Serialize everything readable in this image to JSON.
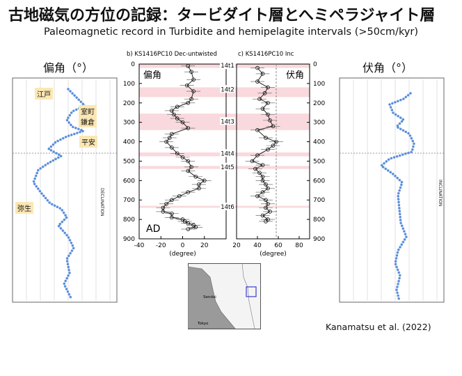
{
  "slide": {
    "title": "古地磁気の方位の記録：タービダイト層とへミペラジャイト層",
    "subtitle": "Paleomagnetic record in Turbidite and hemipelagite intervals (>50cm/kyr)",
    "credit": "Kanamatsu et al. (2022)"
  },
  "left_panel": {
    "title": "偏角（°）",
    "era_labels": [
      "江戸",
      "室町",
      "鎌倉",
      "平安",
      "弥生"
    ],
    "axis_label": "DECLINATION"
  },
  "right_panel": {
    "title": "伏角（°）",
    "axis_label": "INCLINATION"
  },
  "center": {
    "title_b": "b) KS1416PC10 Dec-untwisted",
    "title_c": "c) KS1416PC10 Inc",
    "inner_label_dec": "偏角",
    "inner_label_inc": "伏角",
    "ad_label": "AD",
    "xlabel": "(degree)",
    "turbidite_labels": [
      "14t1",
      "14t2",
      "14t3",
      "14t4",
      "14t5",
      "14t6"
    ]
  },
  "map": {
    "labels": [
      "Sendai",
      "Tokyo"
    ]
  },
  "chart_data": [
    {
      "type": "scatter",
      "name": "KS1416PC10 Dec-untwisted",
      "xlabel": "(degree)",
      "xlim": [
        -40,
        40
      ],
      "ylim": [
        900,
        0
      ],
      "xticks": [
        -40,
        -20,
        0,
        20
      ],
      "yticks": [
        0,
        100,
        200,
        300,
        400,
        500,
        600,
        700,
        800,
        900
      ],
      "turbidite_bands": [
        [
          0,
          20
        ],
        [
          120,
          170
        ],
        [
          255,
          340
        ],
        [
          455,
          475
        ],
        [
          525,
          540
        ],
        [
          730,
          740
        ]
      ],
      "x": [
        5,
        8,
        10,
        4,
        10,
        8,
        5,
        -5,
        -10,
        -8,
        -5,
        0,
        5,
        -10,
        -12,
        -15,
        -10,
        -5,
        0,
        5,
        8,
        5,
        12,
        20,
        15,
        15,
        5,
        -3,
        -10,
        -15,
        -18,
        -18,
        -10,
        -10,
        0,
        2,
        5,
        10,
        12,
        5
      ],
      "y": [
        10,
        40,
        80,
        110,
        140,
        180,
        200,
        220,
        240,
        260,
        280,
        300,
        330,
        360,
        380,
        400,
        430,
        460,
        480,
        500,
        530,
        550,
        580,
        600,
        620,
        640,
        660,
        680,
        700,
        720,
        740,
        760,
        770,
        790,
        800,
        810,
        820,
        830,
        840,
        850
      ]
    },
    {
      "type": "scatter",
      "name": "KS1416PC10 Inc",
      "xlabel": "(degree)",
      "xlim": [
        20,
        90
      ],
      "ylim": [
        900,
        0
      ],
      "xticks": [
        20,
        40,
        60,
        80
      ],
      "yticks": [
        0,
        100,
        200,
        300,
        400,
        500,
        600,
        700,
        800,
        900
      ],
      "reference_line": 58,
      "x": [
        40,
        45,
        40,
        50,
        47,
        42,
        50,
        45,
        50,
        52,
        55,
        40,
        48,
        58,
        55,
        50,
        40,
        35,
        45,
        38,
        42,
        45,
        45,
        48,
        50,
        45,
        40,
        48,
        50,
        48,
        52,
        45,
        50,
        48
      ],
      "y": [
        20,
        50,
        90,
        120,
        150,
        180,
        200,
        230,
        260,
        290,
        320,
        340,
        380,
        400,
        420,
        440,
        470,
        500,
        520,
        540,
        560,
        580,
        600,
        620,
        640,
        660,
        680,
        700,
        720,
        740,
        760,
        780,
        800,
        810
      ]
    }
  ]
}
